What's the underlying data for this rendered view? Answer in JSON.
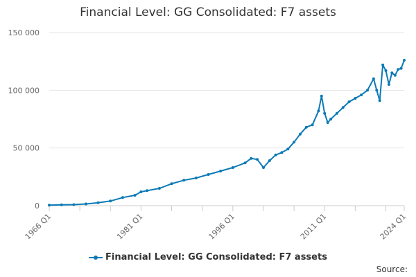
{
  "chart_data": {
    "type": "line",
    "title": "Financial Level: GG Consolidated: F7 assets",
    "xlabel": "",
    "ylabel": "",
    "x_tick_labels": [
      "1966 Q1",
      "1981 Q1",
      "1996 Q1",
      "2011 Q1",
      "2024 Q1"
    ],
    "y_tick_labels": [
      "0",
      "50 000",
      "100 000",
      "150 000"
    ],
    "y_ticks": [
      0,
      50000,
      100000,
      150000
    ],
    "ylim": [
      0,
      150000
    ],
    "xlim": [
      "1966 Q1",
      "2024 Q1"
    ],
    "grid": "horizontal",
    "legend_position": "bottom",
    "color": "#0a7ab6",
    "series": [
      {
        "name": "Financial Level: GG Consolidated: F7 assets",
        "x": [
          "1966 Q1",
          "1968 Q1",
          "1970 Q1",
          "1972 Q1",
          "1974 Q1",
          "1976 Q1",
          "1978 Q1",
          "1980 Q1",
          "1981 Q1",
          "1982 Q1",
          "1984 Q1",
          "1986 Q1",
          "1988 Q1",
          "1990 Q1",
          "1992 Q1",
          "1994 Q1",
          "1996 Q1",
          "1998 Q1",
          "1999 Q1",
          "2000 Q1",
          "2001 Q1",
          "2002 Q1",
          "2003 Q1",
          "2004 Q1",
          "2005 Q1",
          "2006 Q1",
          "2007 Q1",
          "2008 Q1",
          "2009 Q1",
          "2010 Q1",
          "2010 Q3",
          "2011 Q1",
          "2011 Q3",
          "2012 Q1",
          "2013 Q1",
          "2014 Q1",
          "2015 Q1",
          "2016 Q1",
          "2017 Q1",
          "2018 Q1",
          "2019 Q1",
          "2019 Q3",
          "2020 Q1",
          "2020 Q3",
          "2021 Q1",
          "2021 Q3",
          "2022 Q1",
          "2022 Q3",
          "2023 Q1",
          "2023 Q3",
          "2024 Q1"
        ],
        "values": [
          500,
          800,
          900,
          1500,
          2500,
          4000,
          7000,
          9000,
          12000,
          13000,
          15000,
          19000,
          22000,
          24000,
          27000,
          30000,
          33000,
          37000,
          41000,
          40000,
          33000,
          39000,
          44000,
          46000,
          49000,
          55000,
          62000,
          68000,
          70000,
          82000,
          95000,
          80000,
          72000,
          75000,
          80000,
          85000,
          90000,
          93000,
          96000,
          100000,
          110000,
          100000,
          91000,
          122000,
          117000,
          105000,
          115000,
          113000,
          118000,
          119000,
          126000
        ]
      }
    ]
  },
  "source_label": "Source:"
}
